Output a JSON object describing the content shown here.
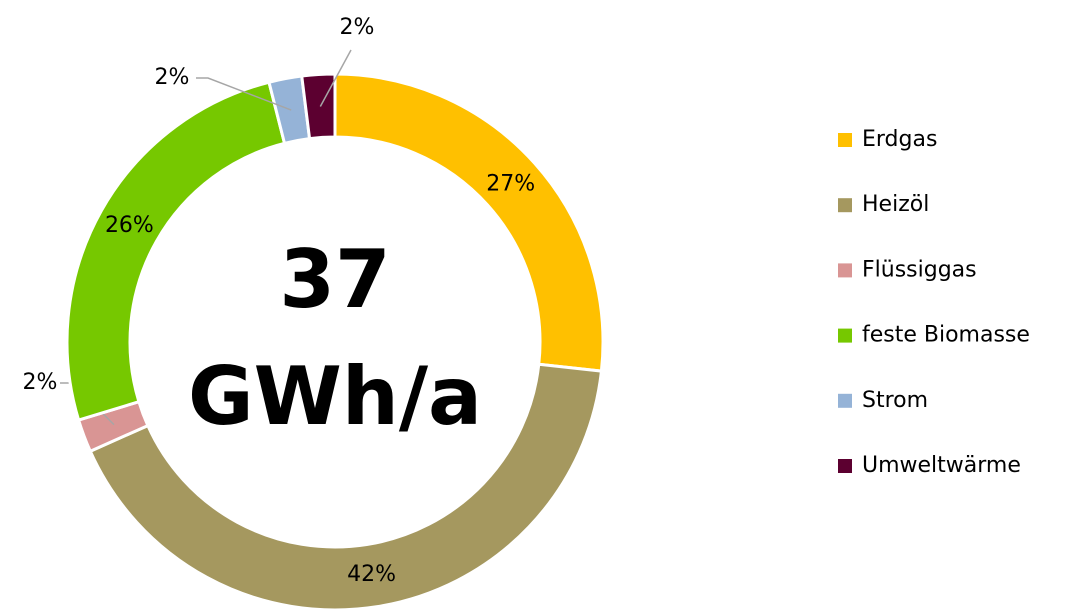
{
  "chart_data": {
    "type": "donut",
    "categories": [
      "Erdgas",
      "Heizöl",
      "Flüssiggas",
      "feste Biomasse",
      "Strom",
      "Umweltwärme"
    ],
    "values": [
      27,
      42,
      2,
      26,
      2,
      2
    ],
    "value_labels": [
      "27%",
      "42%",
      "2%",
      "26%",
      "2%",
      "2%"
    ],
    "colors": [
      "#FFC000",
      "#A5985F",
      "#D99594",
      "#76C800",
      "#95B3D7",
      "#5C0030"
    ],
    "center_text": [
      "37",
      "GWh/a"
    ],
    "legend": "right"
  }
}
